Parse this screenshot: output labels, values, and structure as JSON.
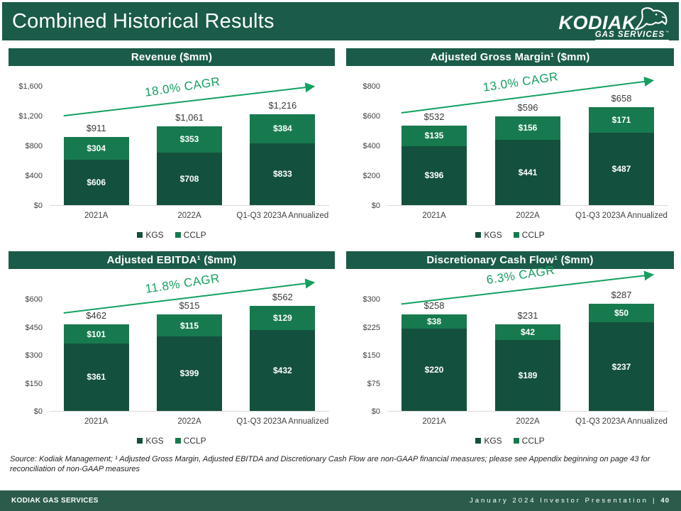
{
  "slide": {
    "title": "Combined Historical Results",
    "logo": {
      "brand": "KODIAK",
      "sub": "GAS SERVICES",
      "tm": "™"
    },
    "source_note": "Source: Kodiak Management; ¹ Adjusted Gross Margin, Adjusted EBITDA and Discretionary Cash Flow are non-GAAP financial measures; please see Appendix beginning on page 43 for reconciliation of non-GAAP measures",
    "footer": {
      "left": "KODIAK GAS SERVICES",
      "right": "January 2024 Investor Presentation",
      "separator": "|",
      "page": "40"
    }
  },
  "colors": {
    "brand_green": "#1B5B49",
    "footer_green": "#2A5B4B",
    "cagr_green": "#14A05F",
    "baseline_gray": "#D9D9D9",
    "series": {
      "KGS": "#14503E",
      "CCLP": "#177A4E"
    }
  },
  "chart_data": [
    {
      "type": "bar",
      "stacked": true,
      "title": "Revenue ($mm)",
      "cagr_label": "18.0% CAGR",
      "categories": [
        "2021A",
        "2022A",
        "Q1-Q3 2023A Annualized"
      ],
      "series": [
        {
          "name": "KGS",
          "values": [
            606,
            708,
            833
          ]
        },
        {
          "name": "CCLP",
          "values": [
            304,
            353,
            384
          ]
        }
      ],
      "totals": [
        911,
        1061,
        1216
      ],
      "ylim": [
        0,
        1600
      ],
      "yticks": [
        {
          "label": "$1,600",
          "value": 1600
        },
        {
          "label": "$1,200",
          "value": 1200
        },
        {
          "label": "$800",
          "value": 800
        },
        {
          "label": "$400",
          "value": 400
        },
        {
          "label": "$0",
          "value": 0
        }
      ],
      "legend_position": "bottom",
      "grid": false
    },
    {
      "type": "bar",
      "stacked": true,
      "title": "Adjusted Gross Margin¹ ($mm)",
      "cagr_label": "13.0% CAGR",
      "categories": [
        "2021A",
        "2022A",
        "Q1-Q3 2023A Annualized"
      ],
      "series": [
        {
          "name": "KGS",
          "values": [
            396,
            441,
            487
          ]
        },
        {
          "name": "CCLP",
          "values": [
            135,
            156,
            171
          ]
        }
      ],
      "totals": [
        532,
        596,
        658
      ],
      "ylim": [
        0,
        800
      ],
      "yticks": [
        {
          "label": "$800",
          "value": 800
        },
        {
          "label": "$600",
          "value": 600
        },
        {
          "label": "$400",
          "value": 400
        },
        {
          "label": "$200",
          "value": 200
        },
        {
          "label": "$0",
          "value": 0
        }
      ],
      "legend_position": "bottom",
      "grid": false
    },
    {
      "type": "bar",
      "stacked": true,
      "title": "Adjusted EBITDA¹ ($mm)",
      "cagr_label": "11.8% CAGR",
      "categories": [
        "2021A",
        "2022A",
        "Q1-Q3 2023A Annualized"
      ],
      "series": [
        {
          "name": "KGS",
          "values": [
            361,
            399,
            432
          ]
        },
        {
          "name": "CCLP",
          "values": [
            101,
            115,
            129
          ]
        }
      ],
      "totals": [
        462,
        515,
        562
      ],
      "ylim": [
        0,
        600
      ],
      "yticks": [
        {
          "label": "$600",
          "value": 600
        },
        {
          "label": "$450",
          "value": 450
        },
        {
          "label": "$300",
          "value": 300
        },
        {
          "label": "$150",
          "value": 150
        },
        {
          "label": "$0",
          "value": 0
        }
      ],
      "legend_position": "bottom",
      "grid": false
    },
    {
      "type": "bar",
      "stacked": true,
      "title": "Discretionary Cash Flow¹ ($mm)",
      "cagr_label": "6.3% CAGR",
      "categories": [
        "2021A",
        "2022A",
        "Q1-Q3 2023A Annualized"
      ],
      "series": [
        {
          "name": "KGS",
          "values": [
            220,
            189,
            237
          ]
        },
        {
          "name": "CCLP",
          "values": [
            38,
            42,
            50
          ]
        }
      ],
      "totals": [
        258,
        231,
        287
      ],
      "ylim": [
        0,
        300
      ],
      "yticks": [
        {
          "label": "$300",
          "value": 300
        },
        {
          "label": "$225",
          "value": 225
        },
        {
          "label": "$150",
          "value": 150
        },
        {
          "label": "$75",
          "value": 75
        },
        {
          "label": "$0",
          "value": 0
        }
      ],
      "legend_position": "bottom",
      "grid": false
    }
  ]
}
